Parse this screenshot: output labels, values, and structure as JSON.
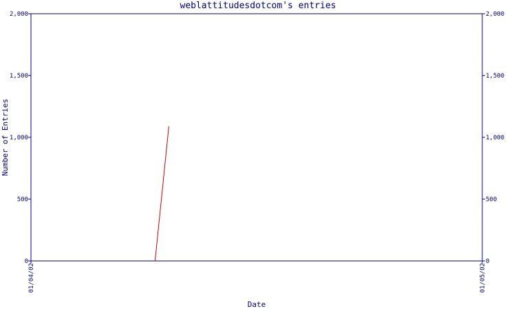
{
  "chart_data": {
    "type": "line",
    "title": "weblattitudesdotcom's entries",
    "xlabel": "Date",
    "ylabel": "Number of Entries",
    "x_ticks": [
      "01/04/02",
      "01/05/02"
    ],
    "y_ticks": [
      "0",
      "500",
      "1,000",
      "1,500",
      "2,000"
    ],
    "ylim": [
      0,
      2000
    ],
    "x_domain": [
      "01/04/02",
      "01/05/02"
    ],
    "series": [
      {
        "color": "#cc0000",
        "points": [
          [
            "01/04/02 06:36",
            0
          ],
          [
            "01/04/02 07:20",
            1090
          ]
        ]
      }
    ],
    "grid": false,
    "axis_color": "#000080"
  }
}
